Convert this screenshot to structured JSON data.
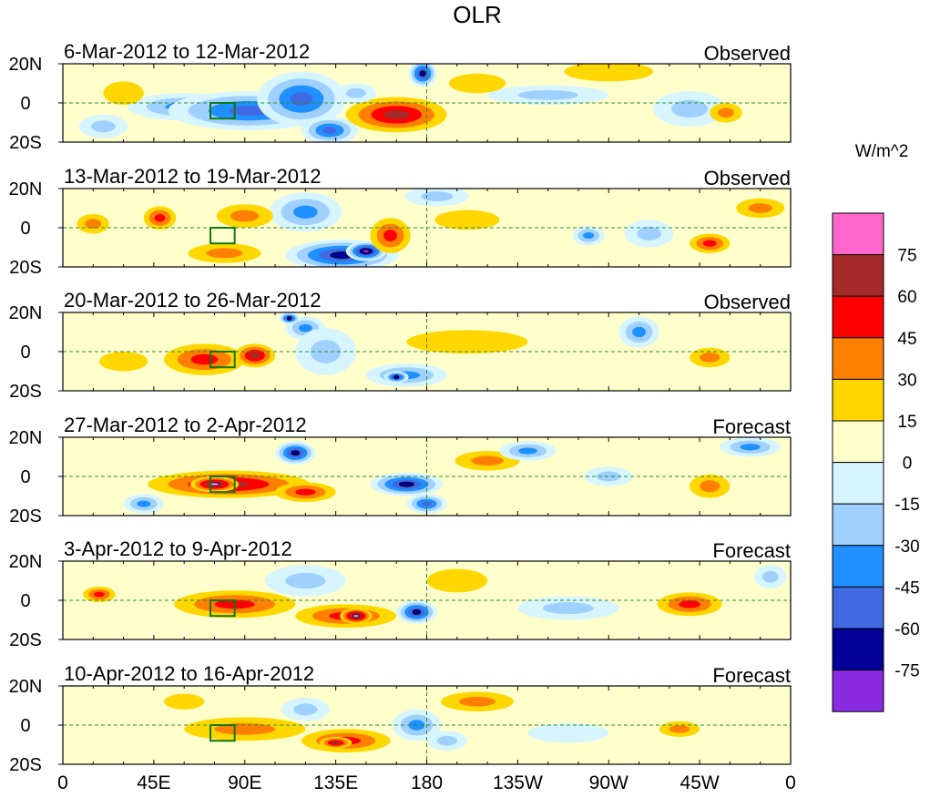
{
  "title": "OLR",
  "colorbar": {
    "units": "W/m^2",
    "labels": [
      "75",
      "60",
      "45",
      "30",
      "15",
      "0",
      "-15",
      "-30",
      "-45",
      "-60",
      "-75"
    ],
    "colors": [
      "#ff66cc",
      "#a52a2a",
      "#ff0000",
      "#ff7f00",
      "#ffd700",
      "#ffffcc",
      "#d6f5ff",
      "#a0d0ff",
      "#1e90ff",
      "#4169e1",
      "#000099",
      "#8a2be2"
    ]
  },
  "x_ticks": [
    "0",
    "45E",
    "90E",
    "135E",
    "180",
    "135W",
    "90W",
    "45W",
    "0"
  ],
  "y_ticks": [
    "20N",
    "0",
    "20S"
  ],
  "panels": [
    {
      "period": "6-Mar-2012 to 12-Mar-2012",
      "type": "Observed",
      "blobs": [
        {
          "lon": 60,
          "lat": -2,
          "rx": 28,
          "ry": 7,
          "v": -3
        },
        {
          "lon": 92,
          "lat": -4,
          "rx": 40,
          "ry": 10,
          "v": -4
        },
        {
          "lon": 118,
          "lat": 2,
          "rx": 22,
          "ry": 14,
          "v": -4
        },
        {
          "lon": 132,
          "lat": -14,
          "rx": 14,
          "ry": 7,
          "v": -4
        },
        {
          "lon": 178,
          "lat": 15,
          "rx": 7,
          "ry": 7,
          "v": -5
        },
        {
          "lon": 165,
          "lat": -6,
          "rx": 25,
          "ry": 9,
          "v": 4
        },
        {
          "lon": 145,
          "lat": 5,
          "rx": 10,
          "ry": 5,
          "v": -2
        },
        {
          "lon": 240,
          "lat": 4,
          "rx": 30,
          "ry": 5,
          "v": -2
        },
        {
          "lon": 205,
          "lat": 10,
          "rx": 14,
          "ry": 5,
          "v": 1
        },
        {
          "lon": 310,
          "lat": -3,
          "rx": 18,
          "ry": 9,
          "v": -2
        },
        {
          "lon": 328,
          "lat": -5,
          "rx": 8,
          "ry": 5,
          "v": 2
        },
        {
          "lon": 30,
          "lat": 5,
          "rx": 10,
          "ry": 6,
          "v": 1
        },
        {
          "lon": 20,
          "lat": -12,
          "rx": 12,
          "ry": 6,
          "v": -2
        },
        {
          "lon": 270,
          "lat": 16,
          "rx": 22,
          "ry": 5,
          "v": 1
        }
      ]
    },
    {
      "period": "13-Mar-2012 to 19-Mar-2012",
      "type": "Observed",
      "blobs": [
        {
          "lon": 15,
          "lat": 2,
          "rx": 8,
          "ry": 5,
          "v": 2
        },
        {
          "lon": 48,
          "lat": 5,
          "rx": 8,
          "ry": 6,
          "v": 3
        },
        {
          "lon": 120,
          "lat": 8,
          "rx": 18,
          "ry": 10,
          "v": -3
        },
        {
          "lon": 138,
          "lat": -14,
          "rx": 28,
          "ry": 8,
          "v": -5
        },
        {
          "lon": 150,
          "lat": -12,
          "rx": 10,
          "ry": 5,
          "v": -6
        },
        {
          "lon": 162,
          "lat": -4,
          "rx": 10,
          "ry": 9,
          "v": 3
        },
        {
          "lon": 90,
          "lat": 6,
          "rx": 14,
          "ry": 6,
          "v": 2
        },
        {
          "lon": 80,
          "lat": -13,
          "rx": 18,
          "ry": 5,
          "v": 2
        },
        {
          "lon": 185,
          "lat": 16,
          "rx": 16,
          "ry": 5,
          "v": -2
        },
        {
          "lon": 200,
          "lat": 4,
          "rx": 16,
          "ry": 5,
          "v": 1
        },
        {
          "lon": 290,
          "lat": -3,
          "rx": 12,
          "ry": 7,
          "v": -2
        },
        {
          "lon": 320,
          "lat": -8,
          "rx": 10,
          "ry": 5,
          "v": 3
        },
        {
          "lon": 260,
          "lat": -4,
          "rx": 8,
          "ry": 5,
          "v": -3
        },
        {
          "lon": 345,
          "lat": 10,
          "rx": 12,
          "ry": 5,
          "v": 2
        }
      ]
    },
    {
      "period": "20-Mar-2012 to 26-Mar-2012",
      "type": "Observed",
      "blobs": [
        {
          "lon": 70,
          "lat": -4,
          "rx": 20,
          "ry": 8,
          "v": 3
        },
        {
          "lon": 95,
          "lat": -2,
          "rx": 10,
          "ry": 6,
          "v": 4
        },
        {
          "lon": 120,
          "lat": 12,
          "rx": 10,
          "ry": 6,
          "v": -3
        },
        {
          "lon": 112,
          "lat": 17,
          "rx": 5,
          "ry": 3,
          "v": -5
        },
        {
          "lon": 130,
          "lat": 0,
          "rx": 15,
          "ry": 12,
          "v": -2
        },
        {
          "lon": 170,
          "lat": -12,
          "rx": 20,
          "ry": 6,
          "v": -3
        },
        {
          "lon": 165,
          "lat": -13,
          "rx": 6,
          "ry": 3,
          "v": -5
        },
        {
          "lon": 200,
          "lat": 5,
          "rx": 30,
          "ry": 6,
          "v": 1
        },
        {
          "lon": 285,
          "lat": 10,
          "rx": 10,
          "ry": 8,
          "v": -3
        },
        {
          "lon": 320,
          "lat": -3,
          "rx": 10,
          "ry": 5,
          "v": 2
        },
        {
          "lon": 30,
          "lat": -5,
          "rx": 12,
          "ry": 5,
          "v": 1
        }
      ]
    },
    {
      "period": "27-Mar-2012 to 2-Apr-2012",
      "type": "Forecast",
      "blobs": [
        {
          "lon": 82,
          "lat": -4,
          "rx": 40,
          "ry": 7,
          "v": 4
        },
        {
          "lon": 75,
          "lat": -4,
          "rx": 12,
          "ry": 4,
          "v": 5
        },
        {
          "lon": 120,
          "lat": -8,
          "rx": 15,
          "ry": 5,
          "v": 3
        },
        {
          "lon": 115,
          "lat": 12,
          "rx": 10,
          "ry": 6,
          "v": -5
        },
        {
          "lon": 170,
          "lat": -4,
          "rx": 18,
          "ry": 6,
          "v": -5
        },
        {
          "lon": 180,
          "lat": -14,
          "rx": 10,
          "ry": 5,
          "v": -4
        },
        {
          "lon": 210,
          "lat": 8,
          "rx": 16,
          "ry": 5,
          "v": 2
        },
        {
          "lon": 230,
          "lat": 13,
          "rx": 14,
          "ry": 5,
          "v": -3
        },
        {
          "lon": 340,
          "lat": 15,
          "rx": 15,
          "ry": 5,
          "v": -3
        },
        {
          "lon": 320,
          "lat": -5,
          "rx": 10,
          "ry": 6,
          "v": 2
        },
        {
          "lon": 40,
          "lat": -14,
          "rx": 10,
          "ry": 5,
          "v": -3
        },
        {
          "lon": 270,
          "lat": 0,
          "rx": 12,
          "ry": 5,
          "v": -2
        }
      ]
    },
    {
      "period": "3-Apr-2012 to 9-Apr-2012",
      "type": "Forecast",
      "blobs": [
        {
          "lon": 85,
          "lat": -2,
          "rx": 30,
          "ry": 7,
          "v": 3
        },
        {
          "lon": 140,
          "lat": -8,
          "rx": 25,
          "ry": 6,
          "v": 3
        },
        {
          "lon": 145,
          "lat": -8,
          "rx": 8,
          "ry": 4,
          "v": 5
        },
        {
          "lon": 175,
          "lat": -6,
          "rx": 10,
          "ry": 6,
          "v": -5
        },
        {
          "lon": 120,
          "lat": 10,
          "rx": 20,
          "ry": 8,
          "v": -2
        },
        {
          "lon": 195,
          "lat": 10,
          "rx": 15,
          "ry": 6,
          "v": 1
        },
        {
          "lon": 250,
          "lat": -4,
          "rx": 25,
          "ry": 6,
          "v": -2
        },
        {
          "lon": 310,
          "lat": -2,
          "rx": 16,
          "ry": 6,
          "v": 3
        },
        {
          "lon": 18,
          "lat": 3,
          "rx": 8,
          "ry": 4,
          "v": 3
        },
        {
          "lon": 350,
          "lat": 12,
          "rx": 8,
          "ry": 6,
          "v": -2
        }
      ]
    },
    {
      "period": "10-Apr-2012 to 16-Apr-2012",
      "type": "Forecast",
      "blobs": [
        {
          "lon": 90,
          "lat": -2,
          "rx": 30,
          "ry": 6,
          "v": 2
        },
        {
          "lon": 140,
          "lat": -8,
          "rx": 22,
          "ry": 6,
          "v": 3
        },
        {
          "lon": 135,
          "lat": -9,
          "rx": 8,
          "ry": 3,
          "v": 4
        },
        {
          "lon": 175,
          "lat": 0,
          "rx": 12,
          "ry": 8,
          "v": -3
        },
        {
          "lon": 190,
          "lat": -8,
          "rx": 10,
          "ry": 5,
          "v": -2
        },
        {
          "lon": 205,
          "lat": 12,
          "rx": 18,
          "ry": 5,
          "v": 2
        },
        {
          "lon": 120,
          "lat": 8,
          "rx": 12,
          "ry": 6,
          "v": -2
        },
        {
          "lon": 305,
          "lat": -2,
          "rx": 10,
          "ry": 4,
          "v": 2
        },
        {
          "lon": 250,
          "lat": -4,
          "rx": 20,
          "ry": 5,
          "v": -1
        },
        {
          "lon": 60,
          "lat": 12,
          "rx": 10,
          "ry": 4,
          "v": 1
        }
      ]
    }
  ]
}
